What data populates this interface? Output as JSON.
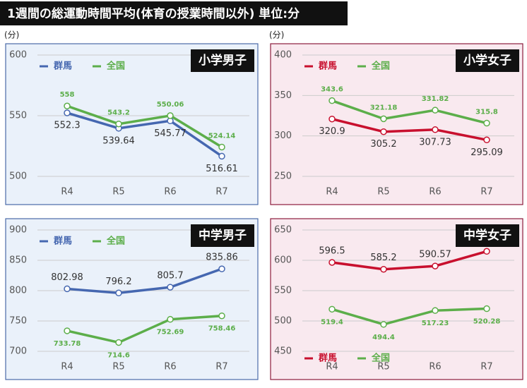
{
  "header": {
    "title": "1週間の総運動時間平均(体育の授業時間以外) 単位:分"
  },
  "chart_data": [
    {
      "type": "line",
      "title": "小学男子",
      "ylabel": "(分)",
      "categories": [
        "R4",
        "R5",
        "R6",
        "R7"
      ],
      "series": [
        {
          "name": "群馬",
          "color": "#4567b0",
          "values": [
            552.3,
            539.64,
            545.77,
            516.61
          ]
        },
        {
          "name": "全国",
          "color": "#5cae4a",
          "values": [
            558,
            543.2,
            550.06,
            524.14
          ]
        }
      ],
      "ylim": [
        500,
        600
      ],
      "yticks": [
        500,
        550,
        600
      ],
      "grid": true,
      "legend": "upper left",
      "background": "#eaf1fa",
      "border": "#4a6aa8"
    },
    {
      "type": "line",
      "title": "小学女子",
      "ylabel": "(分)",
      "categories": [
        "R4",
        "R5",
        "R6",
        "R7"
      ],
      "series": [
        {
          "name": "群馬",
          "color": "#c8102e",
          "values": [
            320.9,
            305.2,
            307.73,
            295.09
          ]
        },
        {
          "name": "全国",
          "color": "#5cae4a",
          "values": [
            343.6,
            321.18,
            331.82,
            315.8
          ]
        }
      ],
      "ylim": [
        250,
        400
      ],
      "yticks": [
        250,
        300,
        350,
        400
      ],
      "grid": true,
      "legend": "upper left",
      "background": "#f9e9ef",
      "border": "#8c1c3c"
    },
    {
      "type": "line",
      "title": "中学男子",
      "categories": [
        "R4",
        "R5",
        "R6",
        "R7"
      ],
      "series": [
        {
          "name": "群馬",
          "color": "#4567b0",
          "values": [
            802.98,
            796.2,
            805.7,
            835.86
          ]
        },
        {
          "name": "全国",
          "color": "#5cae4a",
          "values": [
            733.78,
            714.6,
            752.69,
            758.46
          ]
        }
      ],
      "ylim": [
        700,
        900
      ],
      "yticks": [
        700,
        750,
        800,
        850,
        900
      ],
      "grid": true,
      "legend": "upper left",
      "background": "#eaf1fa",
      "border": "#4a6aa8"
    },
    {
      "type": "line",
      "title": "中学女子",
      "categories": [
        "R4",
        "R5",
        "R6",
        "R7"
      ],
      "series": [
        {
          "name": "群馬",
          "color": "#c8102e",
          "values": [
            596.5,
            585.2,
            590.57,
            614.78
          ]
        },
        {
          "name": "全国",
          "color": "#5cae4a",
          "values": [
            519.4,
            494.4,
            517.23,
            520.28
          ]
        }
      ],
      "ylim": [
        450,
        650
      ],
      "yticks": [
        450,
        500,
        550,
        600,
        650
      ],
      "grid": true,
      "legend": "lower left",
      "background": "#f9e9ef",
      "border": "#8c1c3c"
    }
  ]
}
